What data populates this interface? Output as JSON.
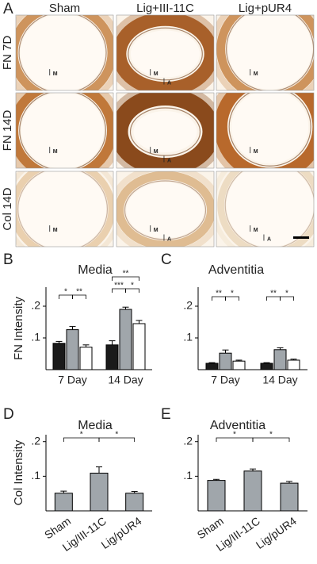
{
  "panel_a": {
    "label": "A",
    "columns": [
      "Sham",
      "Lig+III-11C",
      "Lig+pUR4"
    ],
    "rows": [
      "FN 7D",
      "FN 14D",
      "Col 14D"
    ],
    "cells": [
      [
        [
          "M"
        ],
        [
          "M",
          "A"
        ],
        [
          "M"
        ]
      ],
      [
        [
          "M"
        ],
        [
          "M",
          "A"
        ],
        [
          "M"
        ]
      ],
      [
        [
          "M"
        ],
        [
          "M",
          "A"
        ],
        [
          "M",
          "A"
        ]
      ]
    ]
  },
  "chart_data": [
    {
      "type": "bar",
      "panel": "B",
      "title": "Media",
      "ylabel": "FN Intensity",
      "categories": [
        "7 Day",
        "14 Day"
      ],
      "series": [
        {
          "color": "#1a1a1a",
          "values": [
            0.083,
            0.078
          ],
          "errors": [
            0.006,
            0.013
          ]
        },
        {
          "color": "#a0a6ab",
          "values": [
            0.126,
            0.19
          ],
          "errors": [
            0.01,
            0.007
          ]
        },
        {
          "color": "#ffffff",
          "values": [
            0.071,
            0.145
          ],
          "errors": [
            0.007,
            0.01
          ]
        }
      ],
      "ylim": [
        0,
        0.26
      ],
      "yticks": [
        {
          "value": 0.1,
          "label": ".1"
        },
        {
          "value": 0.2,
          "label": ".2"
        }
      ],
      "annotations": [
        "*",
        "**",
        "***",
        "*",
        "**"
      ]
    },
    {
      "type": "bar",
      "panel": "C",
      "title": "Adventitia",
      "categories": [
        "7 Day",
        "14 Day"
      ],
      "series": [
        {
          "color": "#1a1a1a",
          "values": [
            0.02,
            0.02
          ],
          "errors": [
            0.002,
            0.002
          ]
        },
        {
          "color": "#a0a6ab",
          "values": [
            0.052,
            0.063
          ],
          "errors": [
            0.01,
            0.006
          ]
        },
        {
          "color": "#ffffff",
          "values": [
            0.027,
            0.03
          ],
          "errors": [
            0.003,
            0.003
          ]
        }
      ],
      "ylim": [
        0,
        0.26
      ],
      "yticks": [
        {
          "value": 0.1,
          "label": ".1"
        },
        {
          "value": 0.2,
          "label": ".2"
        }
      ],
      "annotations": [
        "**",
        "*",
        "**",
        "*"
      ]
    },
    {
      "type": "bar",
      "panel": "D",
      "title": "Media",
      "ylabel": "Col Intensity",
      "categories": [
        "Sham",
        "Lig/III-11C",
        "Lig/pUR4"
      ],
      "series": [
        {
          "color": "#a0a6ab",
          "values": [
            0.051,
            0.109,
            0.051
          ],
          "errors": [
            0.006,
            0.018,
            0.005
          ]
        }
      ],
      "ylim": [
        0,
        0.22
      ],
      "yticks": [
        {
          "value": 0.1,
          "label": ".1"
        },
        {
          "value": 0.2,
          "label": ".2"
        }
      ],
      "annotations": [
        "*",
        "*"
      ]
    },
    {
      "type": "bar",
      "panel": "E",
      "title": "Adventitia",
      "categories": [
        "Sham",
        "Lig/III-11C",
        "Lig/pUR4"
      ],
      "series": [
        {
          "color": "#a0a6ab",
          "values": [
            0.088,
            0.115,
            0.08
          ],
          "errors": [
            0.003,
            0.006,
            0.005
          ]
        }
      ],
      "ylim": [
        0,
        0.22
      ],
      "yticks": [
        {
          "value": 0.1,
          "label": ".1"
        },
        {
          "value": 0.2,
          "label": ".2"
        }
      ],
      "annotations": [
        "*",
        "*"
      ]
    }
  ]
}
